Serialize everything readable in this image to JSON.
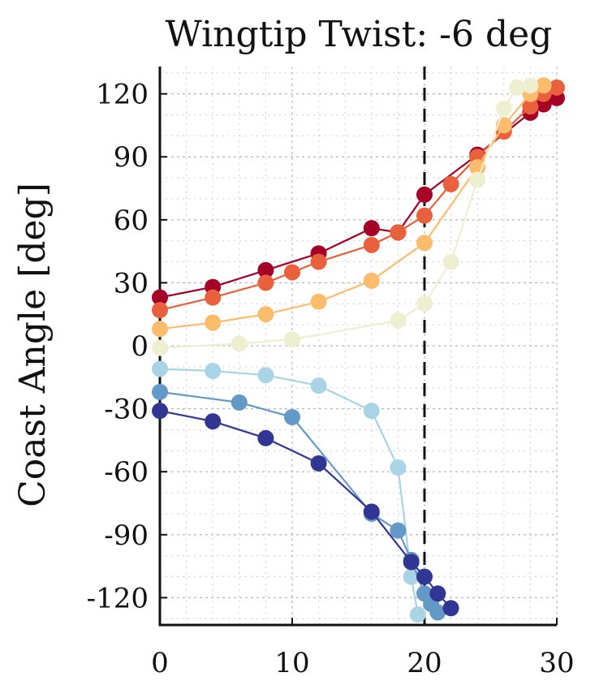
{
  "chart_data": {
    "type": "scatter",
    "title": "Wingtip Twist: -6 deg",
    "ylabel": "Coast Angle [deg]",
    "xlabel": "",
    "xlim": [
      0,
      30
    ],
    "ylim": [
      -133,
      133
    ],
    "xticks": [
      0,
      10,
      20,
      30
    ],
    "yticks": [
      120,
      90,
      60,
      30,
      0,
      -30,
      -60,
      -90,
      -120
    ],
    "grid": true,
    "reference_line_x": 20,
    "series": [
      {
        "color": "#a50026",
        "x": [
          0,
          4,
          8,
          12,
          16,
          18,
          20,
          24,
          28,
          29,
          30
        ],
        "y": [
          23,
          28,
          36,
          44,
          56,
          54,
          72,
          91,
          111,
          115,
          118
        ]
      },
      {
        "color": "#e8603c",
        "x": [
          0,
          4,
          8,
          10,
          12,
          16,
          18,
          20,
          22,
          24,
          26,
          28,
          29,
          30
        ],
        "y": [
          17,
          23,
          30,
          35,
          40,
          48,
          54,
          62,
          77,
          90,
          102,
          114,
          120,
          123
        ]
      },
      {
        "color": "#fdbb6c",
        "x": [
          0,
          4,
          8,
          12,
          16,
          20,
          24,
          26,
          28,
          29
        ],
        "y": [
          8,
          11,
          15,
          21,
          31,
          49,
          85,
          105,
          120,
          124
        ]
      },
      {
        "color": "#eeeed0",
        "x": [
          0,
          6,
          10,
          18,
          20,
          22,
          24,
          26,
          27,
          28
        ],
        "y": [
          -1,
          1,
          3,
          12,
          20,
          40,
          79,
          113,
          123,
          124
        ]
      },
      {
        "color": "#a8d4e6",
        "x": [
          0,
          4,
          8,
          12,
          16,
          18,
          19,
          19.5
        ],
        "y": [
          -11,
          -12,
          -14,
          -19,
          -31,
          -58,
          -110,
          -128
        ]
      },
      {
        "color": "#6399c6",
        "x": [
          0,
          6,
          10,
          16,
          18,
          19,
          20,
          20.5,
          21
        ],
        "y": [
          -22,
          -27,
          -34,
          -80,
          -88,
          -102,
          -118,
          -123,
          -127
        ]
      },
      {
        "color": "#313695",
        "x": [
          0,
          4,
          8,
          12,
          16,
          19,
          20,
          21,
          22
        ],
        "y": [
          -31,
          -36,
          -44,
          -56,
          -79,
          -103,
          -110,
          -118,
          -125
        ]
      }
    ]
  }
}
